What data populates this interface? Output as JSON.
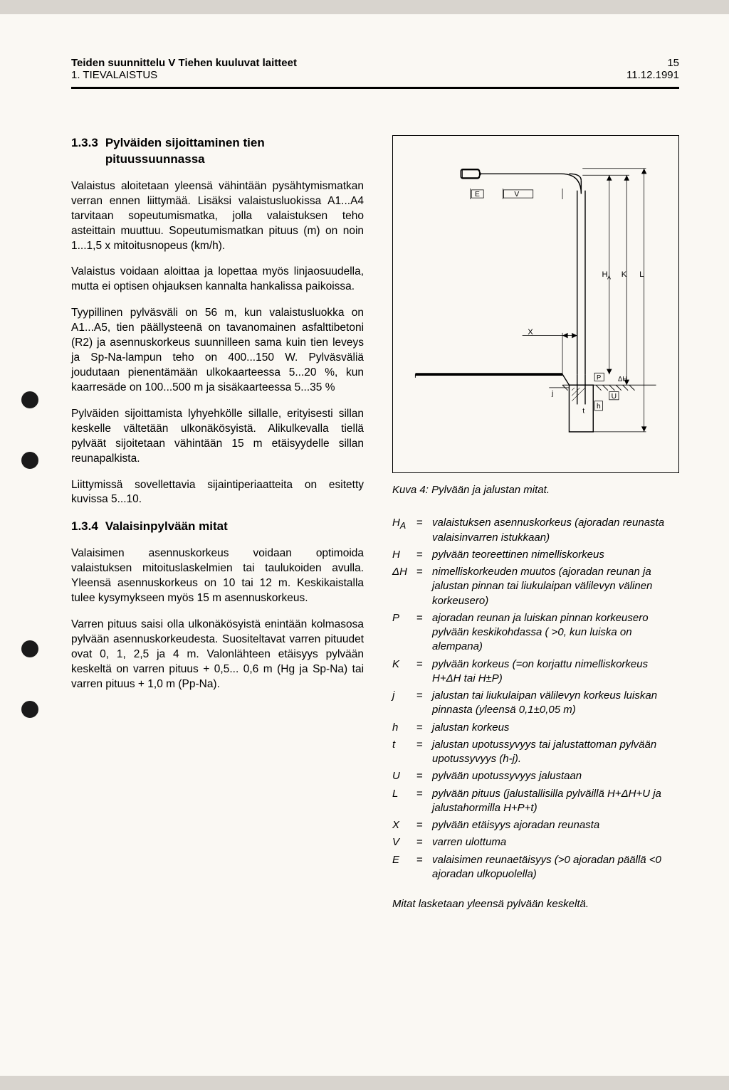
{
  "header": {
    "line1": "Teiden suunnittelu V Tiehen kuuluvat laitteet",
    "line2": "1. TIEVALAISTUS",
    "pageNum": "15",
    "date": "11.12.1991"
  },
  "section133": {
    "number": "1.3.3",
    "title": "Pylväiden sijoittaminen tien pituussuunnassa",
    "p1": "Valaistus aloitetaan yleensä vähintään pysähtymismatkan verran ennen liittymää. Lisäksi valaistusluokissa A1...A4 tarvitaan sopeutumismatka, jolla valaistuksen teho asteittain muuttuu. Sopeutumismatkan pituus (m) on noin 1...1,5 x mitoitusnopeus (km/h).",
    "p2": "Valaistus voidaan aloittaa ja lopettaa myös linjaosuudella, mutta ei optisen ohjauksen kannalta hankalissa paikoissa.",
    "p3": "Tyypillinen pylväsväli on 56 m, kun valaistusluokka on A1...A5, tien päällysteenä on tavanomainen asfalttibetoni (R2) ja asennuskorkeus suunnilleen sama kuin tien leveys ja Sp-Na-lampun teho on 400...150 W. Pylväsväliä joudutaan pienentämään ulkokaarteessa 5...20 %, kun kaarresäde on 100...500 m ja sisäkaarteessa 5...35 %",
    "p4": "Pylväiden sijoittamista lyhyehkölle sillalle, erityisesti sillan keskelle vältetään ulkonäkösyistä. Alikulkevalla tiellä pylväät sijoitetaan vähintään 15 m etäisyydelle sillan reunapalkista.",
    "p5": "Liittymissä sovellettavia sijaintiperiaatteita on esitetty kuvissa 5...10."
  },
  "section134": {
    "number": "1.3.4",
    "title": "Valaisinpylvään mitat",
    "p1": "Valaisimen asennuskorkeus voidaan optimoida valaistuksen mitoituslaskelmien tai taulukoiden avulla. Yleensä asennuskorkeus on 10 tai 12 m. Keskikaistalla tulee kysymykseen myös 15 m asennuskorkeus.",
    "p2": "Varren pituus saisi olla ulkonäkösyistä enintään kolmasosa pylvään asennuskorkeudesta. Suositeltavat varren pituudet ovat 0, 1, 2,5 ja 4 m. Valonlähteen etäisyys pylvään keskeltä on varren pituus + 0,5... 0,6 m (Hg ja Sp-Na) tai varren pituus + 1,0 m (Pp-Na)."
  },
  "figure": {
    "caption": "Kuva 4:  Pylvään ja jalustan mitat.",
    "labels": {
      "E": "E",
      "V": "V",
      "HA": "H",
      "HAsub": "A",
      "K": "K",
      "L": "L",
      "X": "X",
      "P": "P",
      "dH": "ΔH",
      "j": "j",
      "t": "t",
      "h": "h",
      "U": "U"
    }
  },
  "definitions": [
    {
      "sym": "H<sub>A</sub>",
      "text": "valaistuksen asennuskorkeus (ajoradan reunasta valaisinvarren istukkaan)"
    },
    {
      "sym": "H",
      "text": "pylvään teoreettinen nimelliskorkeus"
    },
    {
      "sym": "ΔH",
      "text": "nimelliskorkeuden muutos (ajoradan reunan ja jalustan pinnan tai liukulaipan välilevyn välinen korkeusero)"
    },
    {
      "sym": "P",
      "text": "ajoradan reunan ja luiskan pinnan korkeusero pylvään keskikohdassa ( >0, kun luiska on alempana)"
    },
    {
      "sym": "K",
      "text": "pylvään korkeus (=on korjattu nimelliskorkeus H+ΔH  tai H±P)"
    },
    {
      "sym": "j",
      "text": "jalustan tai liukulaipan välilevyn korkeus luiskan pinnasta (yleensä 0,1±0,05 m)"
    },
    {
      "sym": "h",
      "text": "jalustan korkeus"
    },
    {
      "sym": "t",
      "text": "jalustan upotussyvyys tai jalustattoman pylvään upotussyvyys (h-j)."
    },
    {
      "sym": "U",
      "text": "pylvään upotussyvyys jalustaan"
    },
    {
      "sym": "L",
      "text": "pylvään pituus (jalustallisilla pylväillä H+ΔH+U  ja  jalustahormilla H+P+t)"
    },
    {
      "sym": "X",
      "text": "pylvään etäisyys ajoradan reunasta"
    },
    {
      "sym": "V",
      "text": "varren ulottuma"
    },
    {
      "sym": "E",
      "text": "valaisimen reunaetäisyys (>0 ajoradan päällä <0  ajoradan ulkopuolella)"
    }
  ],
  "footerNote": "Mitat lasketaan yleensä pylvään keskeltä."
}
